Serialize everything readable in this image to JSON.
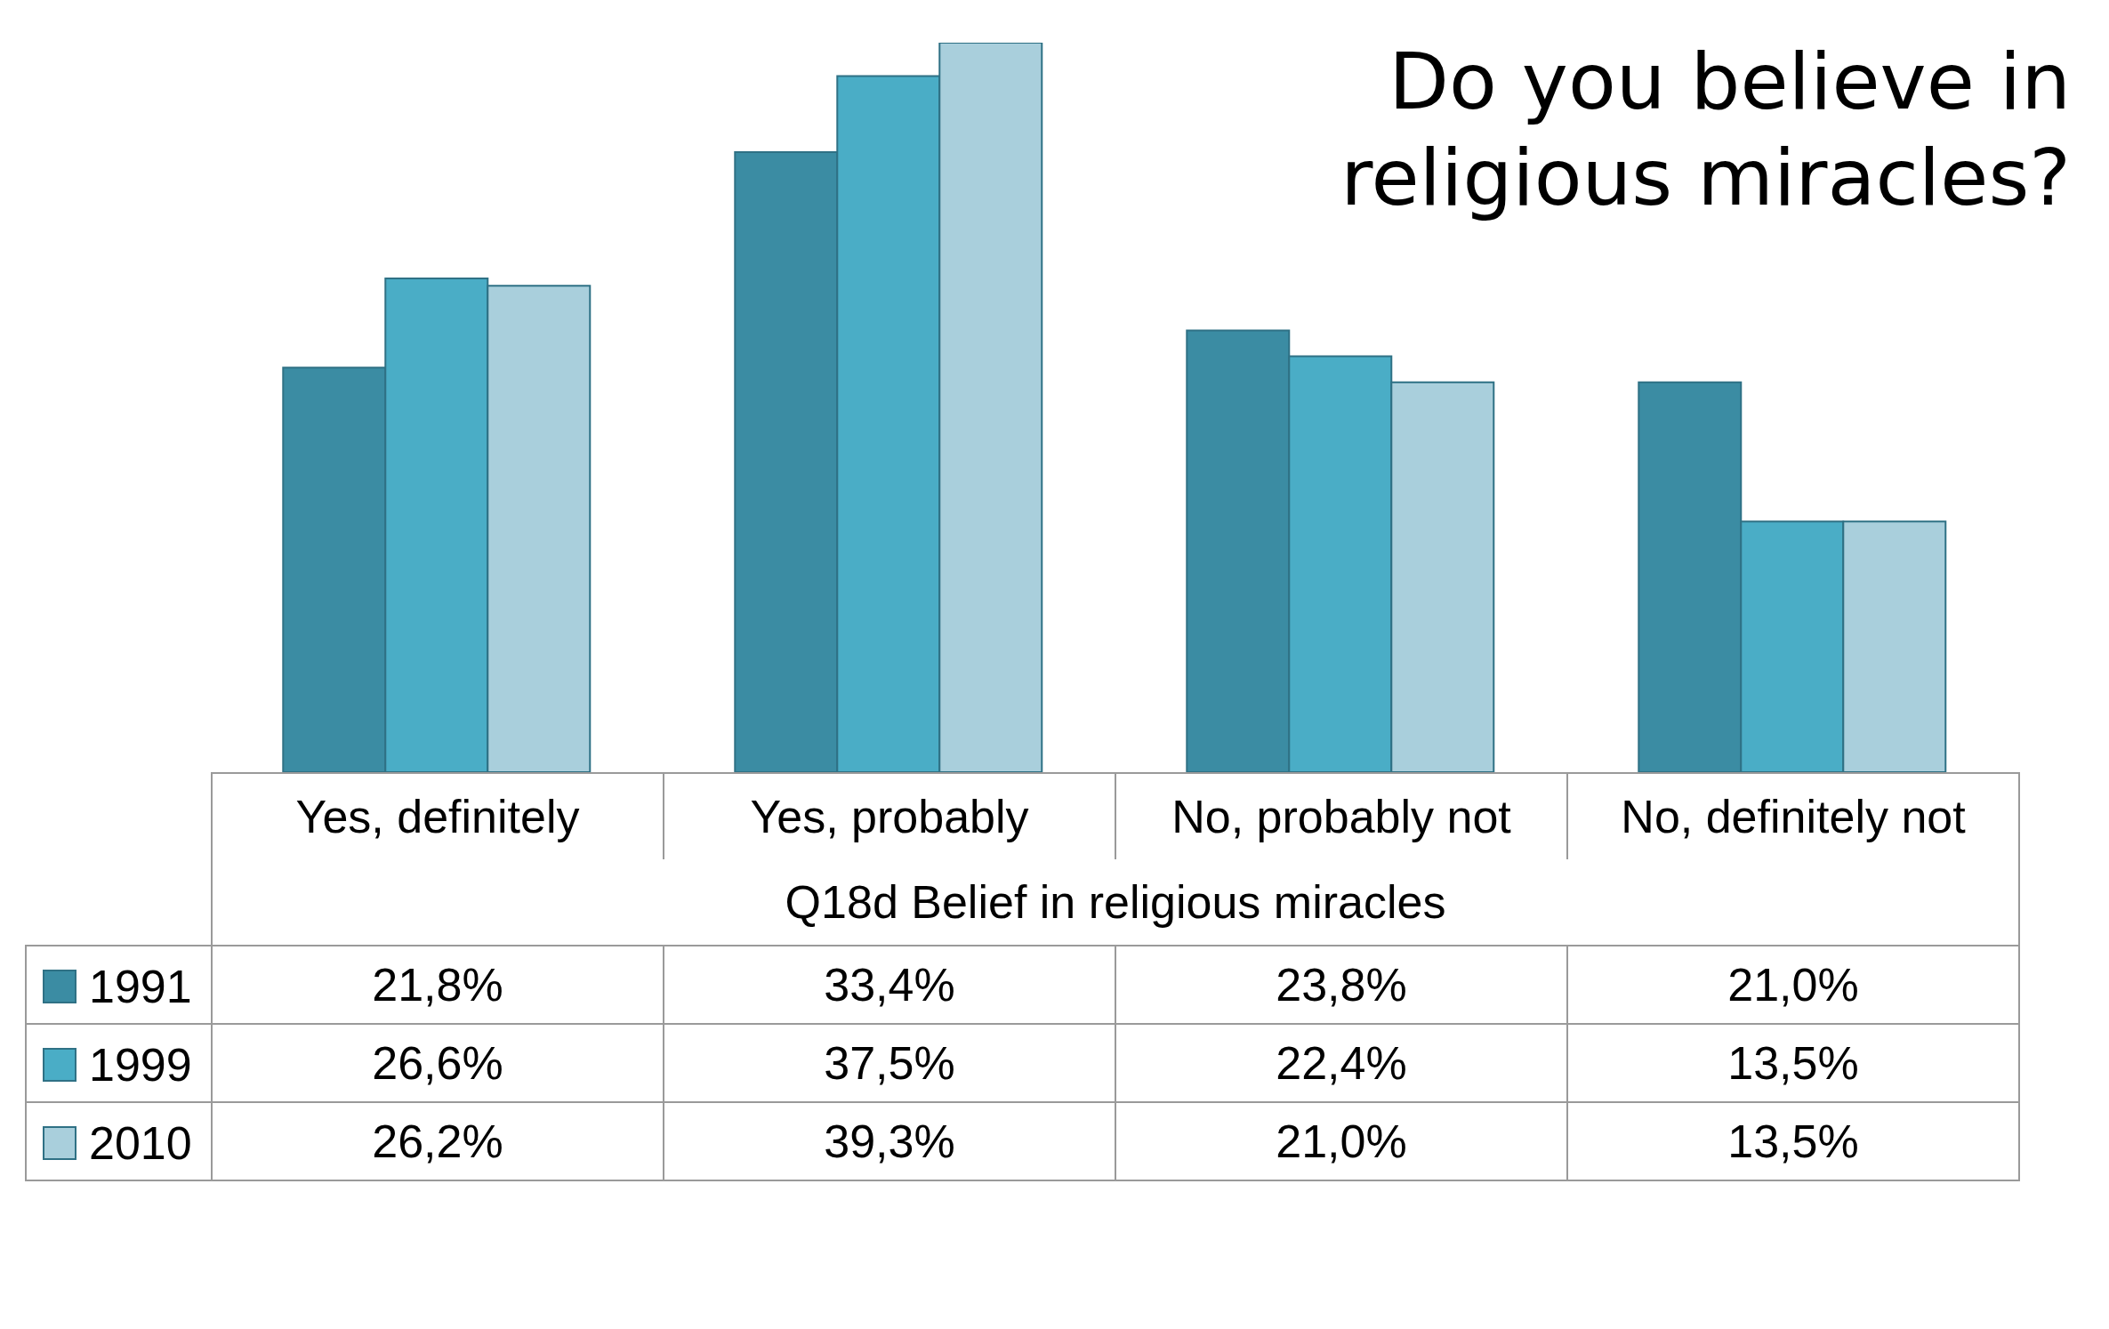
{
  "chart_data": {
    "type": "bar",
    "title": "Do you believe in religious miracles?",
    "xlabel": "Q18d Belief in religious miracles",
    "categories": [
      "Yes, definitely",
      "Yes, probably",
      "No, probably not",
      "No, definitely not"
    ],
    "series": [
      {
        "name": "1991",
        "color": "#3b8ca3",
        "values": [
          21.8,
          33.4,
          23.8,
          21.0
        ],
        "value_labels": [
          "21,8%",
          "33,4%",
          "23,8%",
          "21,0%"
        ]
      },
      {
        "name": "1999",
        "color": "#4aadc6",
        "values": [
          26.6,
          37.5,
          22.4,
          13.5
        ],
        "value_labels": [
          "26,6%",
          "37,5%",
          "22,4%",
          "13,5%"
        ]
      },
      {
        "name": "2010",
        "color": "#a9cfdc",
        "values": [
          26.2,
          39.3,
          21.0,
          13.5
        ],
        "value_labels": [
          "26,2%",
          "39,3%",
          "21,0%",
          "13,5%"
        ]
      }
    ],
    "legend": "bottom"
  }
}
